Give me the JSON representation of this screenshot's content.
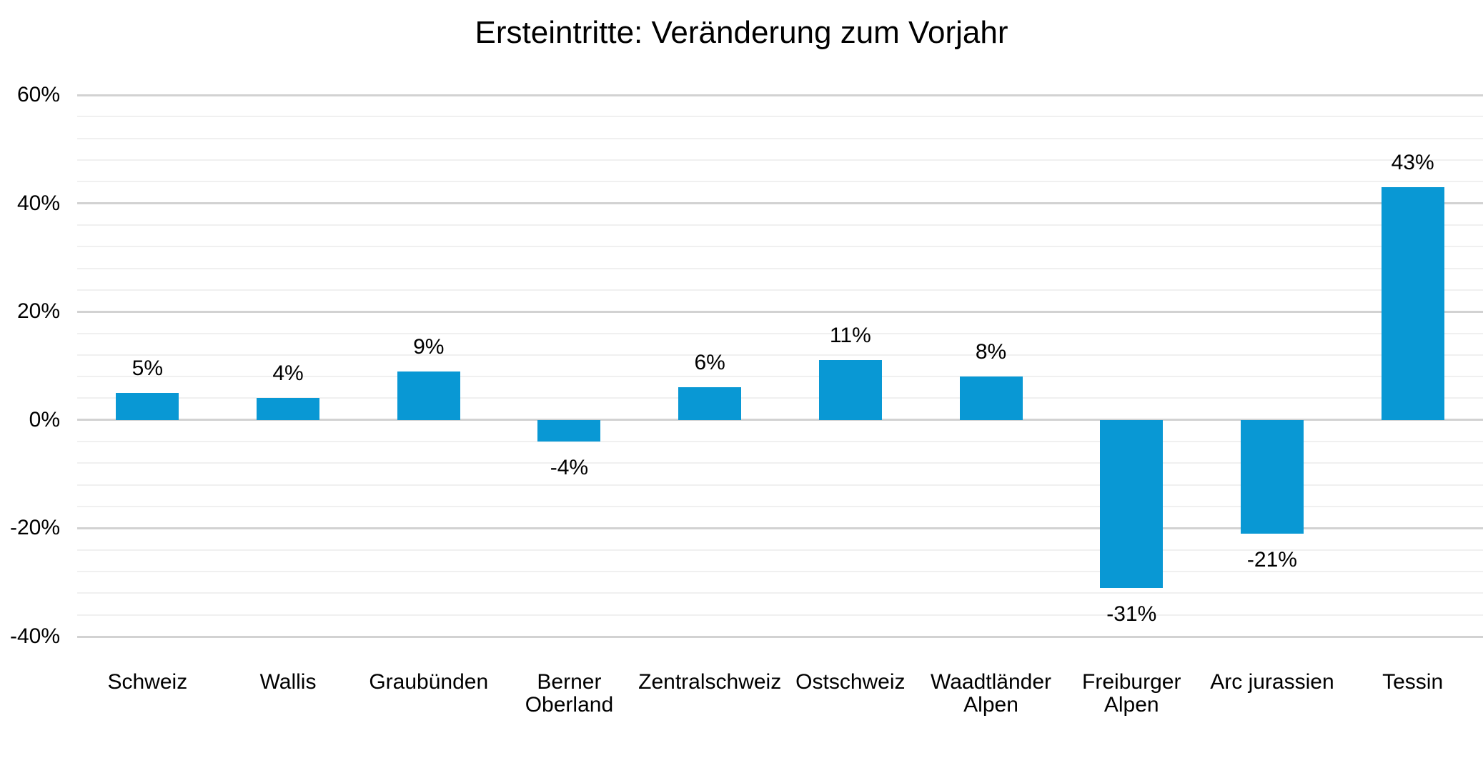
{
  "chart_data": {
    "type": "bar",
    "title": "Ersteintritte: Veränderung zum Vorjahr",
    "categories": [
      "Schweiz",
      "Wallis",
      "Graubünden",
      "Berner Oberland",
      "Zentralschweiz",
      "Ostschweiz",
      "Waadtländer Alpen",
      "Freiburger Alpen",
      "Arc jurassien",
      "Tessin"
    ],
    "values": [
      5,
      4,
      9,
      -4,
      6,
      11,
      8,
      -31,
      -21,
      43
    ],
    "data_labels": [
      "5%",
      "4%",
      "9%",
      "-4%",
      "6%",
      "11%",
      "8%",
      "-31%",
      "-21%",
      "43%"
    ],
    "xlabel": "",
    "ylabel": "",
    "ylim": [
      -40,
      60
    ],
    "y_major_unit": 20,
    "y_minor_unit": 4,
    "yticks": [
      {
        "value": 60,
        "label": "60%"
      },
      {
        "value": 40,
        "label": "40%"
      },
      {
        "value": 20,
        "label": "20%"
      },
      {
        "value": 0,
        "label": "0%"
      },
      {
        "value": -20,
        "label": "-20%"
      },
      {
        "value": -40,
        "label": "-40%"
      }
    ],
    "grid": "horizontal major+minor, no axis lines",
    "legend": "none",
    "colors": {
      "bar": "#0998D4",
      "major_gridline": "#D2D2D2",
      "minor_gridline": "#F0F0F0",
      "text": "#000000",
      "background": "#FFFFFF"
    }
  }
}
